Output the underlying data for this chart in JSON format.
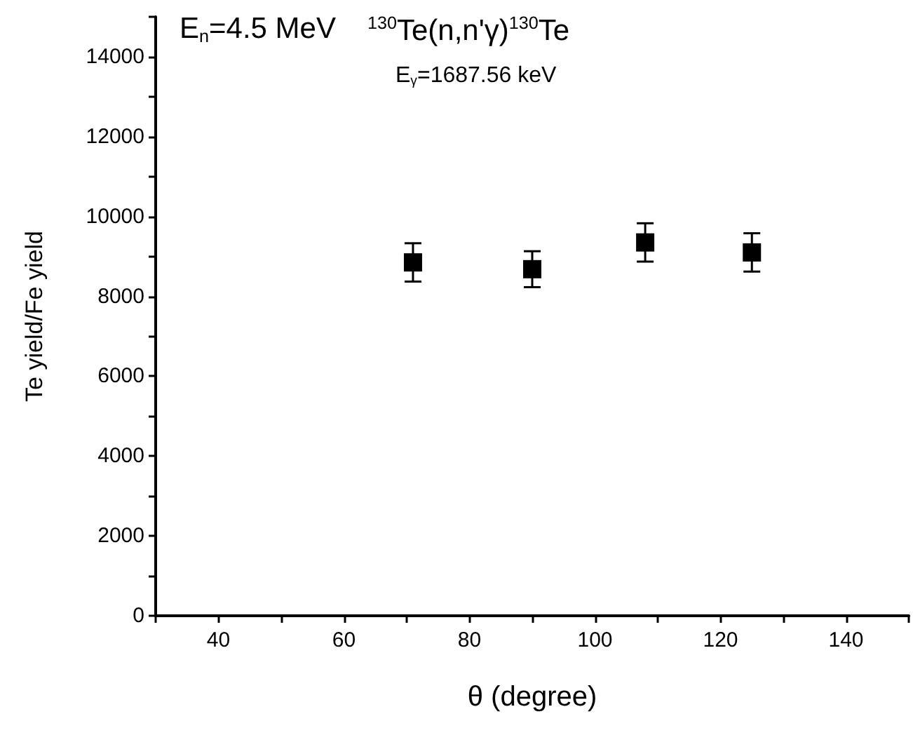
{
  "chart_data": {
    "type": "scatter",
    "xlabel": "θ (degree)",
    "ylabel": "Te yield/Fe yield",
    "annotations": [
      "E$_{n}$=4.5 MeV",
      "$^{130}$Te(n,n'γ)$^{130}$Te",
      "E$_{γ}$=1687.56 keV"
    ],
    "x": [
      71,
      90,
      108,
      125
    ],
    "series": [
      {
        "color": "#000000",
        "values": [
          8850,
          8680,
          9350,
          9100
        ],
        "errors": [
          480,
          450,
          480,
          480
        ]
      }
    ],
    "xlim": [
      30,
      150
    ],
    "xticks": [
      {
        "value": 30,
        "label": null
      },
      40,
      {
        "value": 50,
        "label": null
      },
      60,
      {
        "value": 70,
        "label": null
      },
      80,
      {
        "value": 90,
        "label": null
      },
      100,
      {
        "value": 110,
        "label": null
      },
      120,
      {
        "value": 130,
        "label": null
      },
      140,
      {
        "value": 150,
        "label": null
      }
    ],
    "ylim": [
      0,
      15000
    ],
    "yticks": [
      0,
      {
        "value": 1000,
        "label": null
      },
      2000,
      {
        "value": 3000,
        "label": null
      },
      4000,
      {
        "value": 5000,
        "label": null
      },
      6000,
      {
        "value": 7000,
        "label": null
      },
      8000,
      {
        "value": 9000,
        "label": null
      },
      10000,
      {
        "value": 11000,
        "label": null
      },
      12000,
      {
        "value": 13000,
        "label": null
      },
      14000,
      {
        "value": 15000,
        "label": null
      }
    ],
    "marker": "square",
    "grid": false
  }
}
